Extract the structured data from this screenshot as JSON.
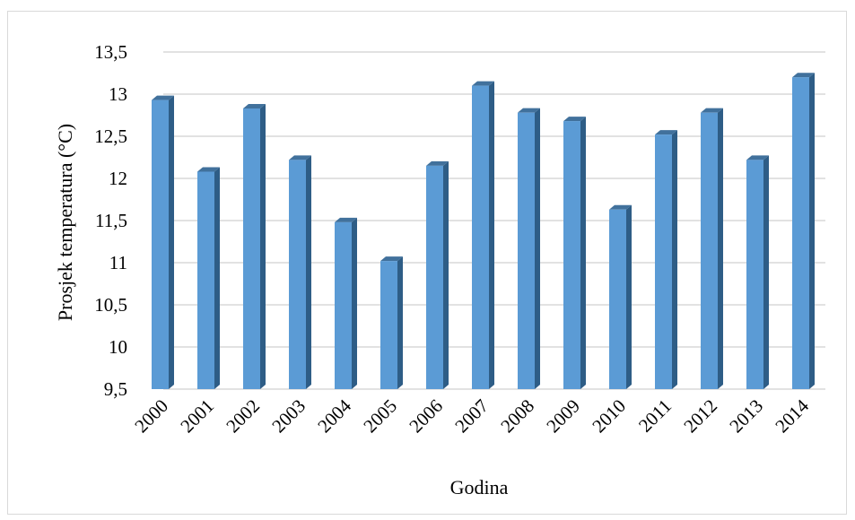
{
  "chart_data": {
    "type": "bar",
    "style": "3d-column",
    "categories": [
      "2000",
      "2001",
      "2002",
      "2003",
      "2004",
      "2005",
      "2006",
      "2007",
      "2008",
      "2009",
      "2010",
      "2011",
      "2012",
      "2013",
      "2014"
    ],
    "values": [
      12.93,
      12.08,
      12.83,
      12.22,
      11.48,
      11.02,
      12.15,
      13.1,
      12.78,
      12.68,
      11.63,
      12.52,
      12.78,
      12.22,
      13.2
    ],
    "yticks": [
      "9,5",
      "10",
      "10,5",
      "11",
      "11,5",
      "12",
      "12,5",
      "13",
      "13,5"
    ],
    "ylim": [
      9.5,
      13.5
    ],
    "xlabel": "Godina",
    "ylabel": "Prosjek temperatura (°C)",
    "grid": true,
    "colors": {
      "bar_front": "#5b9bd5",
      "bar_side": "#2e5d86",
      "bar_top": "#41719c",
      "grid": "#d9d9d9"
    }
  }
}
